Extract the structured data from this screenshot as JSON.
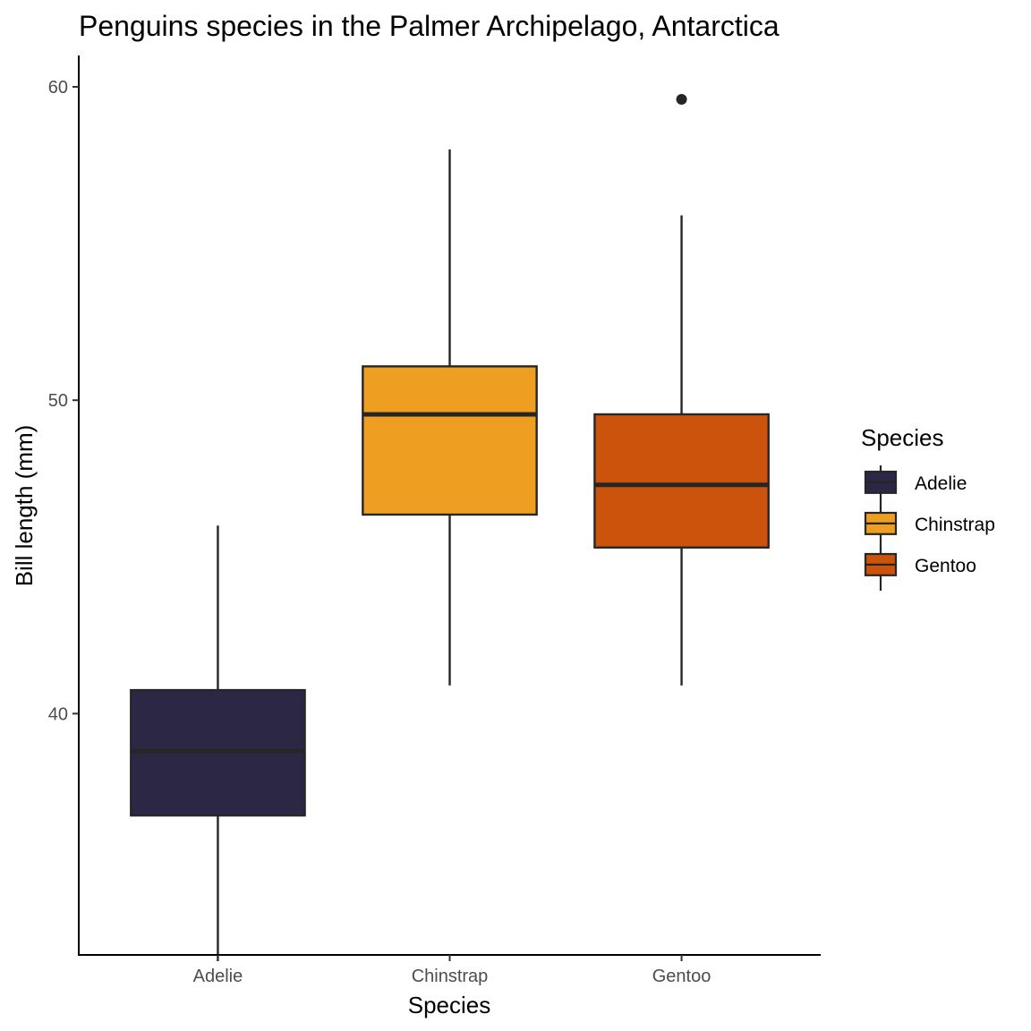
{
  "chart_data": {
    "type": "boxplot",
    "title": "Penguins species in the Palmer Archipelago, Antarctica",
    "xlabel": "Species",
    "ylabel": "Bill length (mm)",
    "ylim": [
      32.3,
      61.0
    ],
    "yticks": [
      40,
      50,
      60
    ],
    "categories": [
      "Adelie",
      "Chinstrap",
      "Gentoo"
    ],
    "boxes": [
      {
        "category": "Adelie",
        "whisker_low": 32.1,
        "q1": 36.75,
        "median": 38.8,
        "q3": 40.75,
        "whisker_high": 46.0,
        "outliers": [],
        "fill": "#2c2745"
      },
      {
        "category": "Chinstrap",
        "whisker_low": 40.9,
        "q1": 46.35,
        "median": 49.55,
        "q3": 51.08,
        "whisker_high": 58.0,
        "outliers": [],
        "fill": "#ee9f21"
      },
      {
        "category": "Gentoo",
        "whisker_low": 40.9,
        "q1": 45.3,
        "median": 47.3,
        "q3": 49.55,
        "whisker_high": 55.9,
        "outliers": [
          59.6
        ],
        "fill": "#cc530b"
      }
    ],
    "legend": {
      "title": "Species",
      "position": "right",
      "entries": [
        {
          "label": "Adelie",
          "color": "#2c2745"
        },
        {
          "label": "Chinstrap",
          "color": "#ee9f21"
        },
        {
          "label": "Gentoo",
          "color": "#cc530b"
        }
      ]
    },
    "grid": false,
    "line_color": "#262626"
  }
}
